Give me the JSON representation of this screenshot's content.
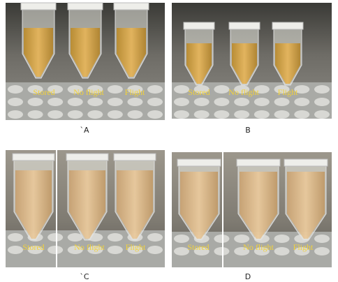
{
  "panels": [
    {
      "caption": "`A",
      "labels": [
        "Stored",
        "No flight",
        "Flight"
      ]
    },
    {
      "caption": "B",
      "labels": [
        "Stored",
        "No flight",
        "Flight"
      ]
    },
    {
      "caption": "`C",
      "labels": [
        "Stored",
        "No flight",
        "Flight"
      ]
    },
    {
      "caption": "D",
      "labels": [
        "Stored",
        "No flight",
        "Flight"
      ]
    }
  ]
}
